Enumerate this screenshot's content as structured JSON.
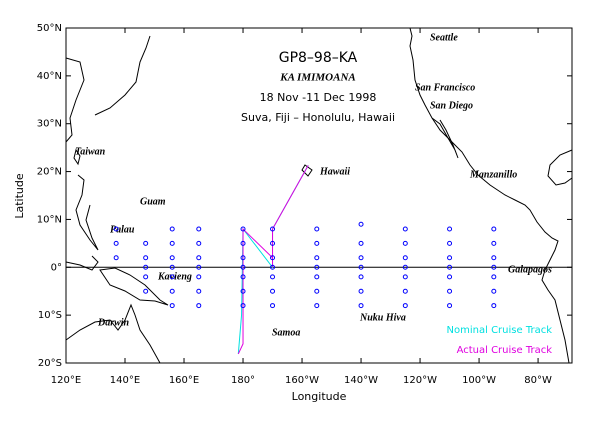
{
  "chart_data": {
    "type": "map",
    "title": "GP8–98–KA",
    "subtitles": [
      "KA IMIMOANA",
      "18 Nov -11 Dec 1998",
      "Suva, Fiji – Honolulu, Hawaii"
    ],
    "x_label": "Longitude",
    "y_label": "Latitude",
    "xlim": [
      120,
      291.5
    ],
    "ylim": [
      -20,
      50
    ],
    "xticks": [
      {
        "value": 120,
        "label": "120°E"
      },
      {
        "value": 140,
        "label": "140°E"
      },
      {
        "value": 160,
        "label": "160°E"
      },
      {
        "value": 180,
        "label": "180°"
      },
      {
        "value": 200,
        "label": "160°W"
      },
      {
        "value": 220,
        "label": "140°W"
      },
      {
        "value": 240,
        "label": "120°W"
      },
      {
        "value": 260,
        "label": "100°W"
      },
      {
        "value": 280,
        "label": "80°W"
      }
    ],
    "yticks": [
      {
        "value": -20,
        "label": "20°S"
      },
      {
        "value": -10,
        "label": "10°S"
      },
      {
        "value": 0,
        "label": "0°"
      },
      {
        "value": 10,
        "label": "10°N"
      },
      {
        "value": 20,
        "label": "20°N"
      },
      {
        "value": 30,
        "label": "30°N"
      },
      {
        "value": 40,
        "label": "40°N"
      },
      {
        "value": 50,
        "label": "50°N"
      }
    ],
    "hline": 0,
    "places": [
      "Seattle",
      "San Francisco",
      "San Diego",
      "Manzanillo",
      "Hawaii",
      "Galapagos",
      "Nuku Hiva",
      "Samoa",
      "Darwin",
      "Kavieng",
      "Guam",
      "Palau",
      "Taiwan"
    ],
    "stations": {
      "color": "#0000ff",
      "x": [
        137,
        137,
        137,
        147,
        147,
        147,
        147,
        147,
        156,
        156,
        156,
        156,
        156,
        156,
        156,
        165,
        165,
        165,
        165,
        165,
        165,
        165,
        180,
        180,
        180,
        180,
        180,
        180,
        180,
        190,
        190,
        190,
        190,
        190,
        190,
        190,
        205,
        205,
        205,
        205,
        205,
        205,
        205,
        220,
        220,
        220,
        220,
        220,
        220,
        220,
        235,
        235,
        235,
        235,
        235,
        235,
        235,
        250,
        250,
        250,
        250,
        250,
        250,
        250,
        265,
        265,
        265,
        265,
        265,
        265,
        265
      ],
      "y": [
        8,
        5,
        2,
        5,
        2,
        0,
        -2,
        -5,
        8,
        5,
        2,
        0,
        -2,
        -5,
        -8,
        8,
        5,
        2,
        0,
        -2,
        -5,
        -8,
        8,
        5,
        2,
        0,
        -2,
        -5,
        -8,
        8,
        5,
        2,
        0,
        -2,
        -5,
        -8,
        8,
        5,
        2,
        0,
        -2,
        -5,
        -8,
        9,
        5,
        2,
        0,
        -2,
        -5,
        -8,
        8,
        5,
        2,
        0,
        -2,
        -5,
        -8,
        8,
        5,
        2,
        0,
        -2,
        -5,
        -8,
        8,
        5,
        2,
        0,
        -2,
        -5,
        -8
      ]
    },
    "series": [
      {
        "name": "Nominal Cruise Track",
        "color": "#00e0e0",
        "x": [
          178.4,
          179.5,
          180,
          190,
          190,
          202.1
        ],
        "values": [
          -18.1,
          -10,
          8,
          0,
          8,
          21.3
        ]
      },
      {
        "name": "Actual Cruise Track",
        "color": "#e000e0",
        "x": [
          178.4,
          180,
          180,
          190,
          190,
          190,
          202.1
        ],
        "values": [
          -18.1,
          -16,
          8,
          2,
          0,
          8,
          21.3
        ]
      }
    ]
  }
}
